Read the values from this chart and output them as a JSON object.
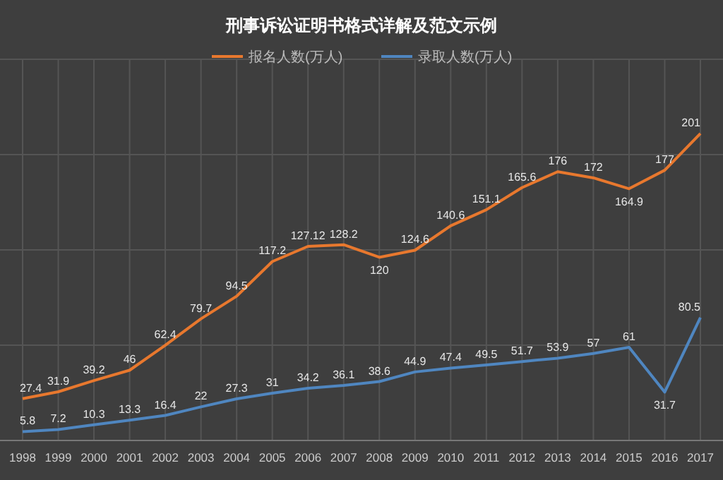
{
  "chart_data": {
    "type": "line",
    "title": "刑事诉讼证明书格式详解及范文示例",
    "categories": [
      "1998",
      "1999",
      "2000",
      "2001",
      "2002",
      "2003",
      "2004",
      "2005",
      "2006",
      "2007",
      "2008",
      "2009",
      "2010",
      "2011",
      "2012",
      "2013",
      "2014",
      "2015",
      "2016",
      "2017"
    ],
    "series": [
      {
        "name": "报名人数(万人)",
        "color": "#e8782e",
        "values": [
          27.4,
          31.9,
          39.2,
          46,
          62.4,
          79.7,
          94.5,
          117.2,
          127.12,
          128.2,
          120,
          124.6,
          140.6,
          151.1,
          165.6,
          176,
          172,
          164.9,
          177,
          201
        ]
      },
      {
        "name": "录取人数(万人)",
        "color": "#4f86c0",
        "values": [
          5.8,
          7.2,
          10.3,
          13.3,
          16.4,
          22,
          27.3,
          31,
          34.2,
          36.1,
          38.6,
          44.9,
          47.4,
          49.5,
          51.7,
          53.9,
          57,
          61,
          31.7,
          80.5
        ]
      }
    ],
    "data_labels": true,
    "grid": true,
    "legend": "top",
    "marker": "none",
    "line_style": "solid"
  }
}
